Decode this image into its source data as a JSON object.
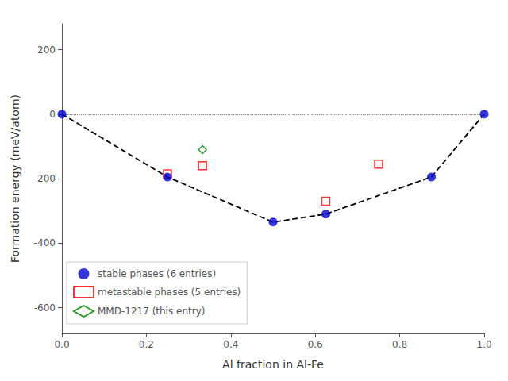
{
  "chart_data": {
    "type": "scatter",
    "xlabel": "Al fraction in Al-Fe",
    "ylabel": "Formation energy (meV/atom)",
    "xlim": [
      0.0,
      1.0
    ],
    "ylim": [
      -680,
      280
    ],
    "xticks": [
      {
        "value": 0.0,
        "label": "0.0"
      },
      0.2,
      0.4,
      0.6,
      0.8,
      {
        "value": 1.0,
        "label": "1.0"
      }
    ],
    "yticks": [
      -600,
      -400,
      -200,
      0,
      200
    ],
    "grid": false,
    "legend": "lower left",
    "reference_lines": [
      {
        "y": 0,
        "color": "#808080",
        "line_style": "dotted"
      }
    ],
    "series": [
      {
        "type": "line",
        "line_style": "dashed",
        "color": "#000000",
        "x": [
          0.0,
          0.25,
          0.5,
          0.625,
          0.875,
          1.0
        ],
        "values": [
          0,
          -195,
          -335,
          -310,
          -195,
          0
        ]
      },
      {
        "type": "scatter",
        "name": "stable phases (6 entries)",
        "color": "#0000cd",
        "marker": "circle",
        "x": [
          0.0,
          0.25,
          0.5,
          0.625,
          0.875,
          1.0
        ],
        "values": [
          0,
          -195,
          -335,
          -310,
          -195,
          0
        ]
      },
      {
        "type": "scatter",
        "name": "metastable phases (5 entries)",
        "color": "#ff0000",
        "marker": "open square",
        "x": [
          0.25,
          0.333,
          0.625,
          0.75
        ],
        "values": [
          -185,
          -160,
          -270,
          -155
        ]
      },
      {
        "type": "scatter",
        "name": "MMD-1217 (this entry)",
        "color": "#008000",
        "marker": "open diamond",
        "x": [
          0.333
        ],
        "values": [
          -110
        ]
      }
    ]
  }
}
